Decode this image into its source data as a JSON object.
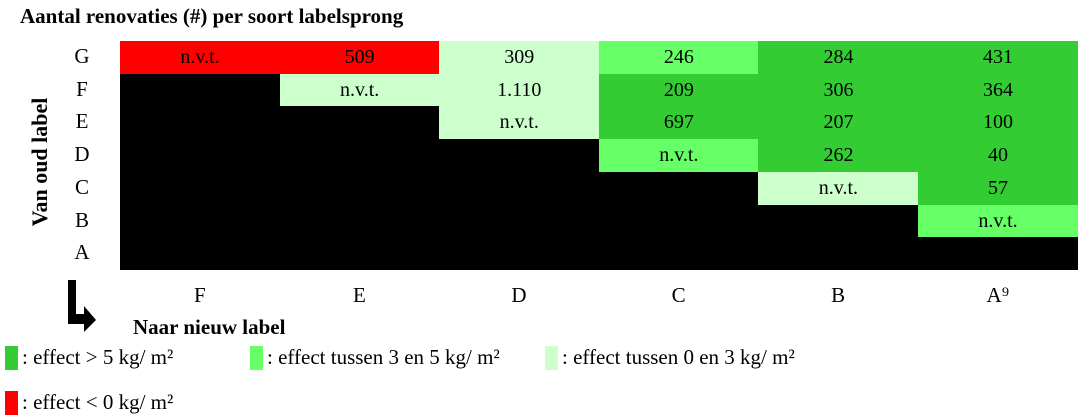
{
  "title": "Aantal renovaties (#) per soort labelsprong",
  "row_axis_label": "Van oud label",
  "column_axis_label": "Naar nieuw label",
  "columns": [
    "F",
    "E",
    "D",
    "C",
    "B",
    "A⁹"
  ],
  "rows": [
    {
      "label": "G",
      "cells": [
        {
          "text": "n.v.t.",
          "color": "#ff0000"
        },
        {
          "text": "509",
          "color": "#ff0000"
        },
        {
          "text": "309",
          "color": "#ccffcc"
        },
        {
          "text": "246",
          "color": "#66ff66"
        },
        {
          "text": "284",
          "color": "#33cc33"
        },
        {
          "text": "431",
          "color": "#33cc33"
        }
      ]
    },
    {
      "label": "F",
      "cells": [
        {
          "text": null,
          "color": "#000000"
        },
        {
          "text": "n.v.t.",
          "color": "#ccffcc"
        },
        {
          "text": "1.110",
          "color": "#ccffcc"
        },
        {
          "text": "209",
          "color": "#33cc33"
        },
        {
          "text": "306",
          "color": "#33cc33"
        },
        {
          "text": "364",
          "color": "#33cc33"
        }
      ]
    },
    {
      "label": "E",
      "cells": [
        {
          "text": null,
          "color": "#000000"
        },
        {
          "text": null,
          "color": "#000000"
        },
        {
          "text": "n.v.t.",
          "color": "#ccffcc"
        },
        {
          "text": "697",
          "color": "#33cc33"
        },
        {
          "text": "207",
          "color": "#33cc33"
        },
        {
          "text": "100",
          "color": "#33cc33"
        }
      ]
    },
    {
      "label": "D",
      "cells": [
        {
          "text": null,
          "color": "#000000"
        },
        {
          "text": null,
          "color": "#000000"
        },
        {
          "text": null,
          "color": "#000000"
        },
        {
          "text": "n.v.t.",
          "color": "#66ff66"
        },
        {
          "text": "262",
          "color": "#33cc33"
        },
        {
          "text": "40",
          "color": "#33cc33"
        }
      ]
    },
    {
      "label": "C",
      "cells": [
        {
          "text": null,
          "color": "#000000"
        },
        {
          "text": null,
          "color": "#000000"
        },
        {
          "text": null,
          "color": "#000000"
        },
        {
          "text": null,
          "color": "#000000"
        },
        {
          "text": "n.v.t.",
          "color": "#ccffcc"
        },
        {
          "text": "57",
          "color": "#33cc33"
        }
      ]
    },
    {
      "label": "B",
      "cells": [
        {
          "text": null,
          "color": "#000000"
        },
        {
          "text": null,
          "color": "#000000"
        },
        {
          "text": null,
          "color": "#000000"
        },
        {
          "text": null,
          "color": "#000000"
        },
        {
          "text": null,
          "color": "#000000"
        },
        {
          "text": "n.v.t.",
          "color": "#66ff66"
        }
      ]
    },
    {
      "label": "A",
      "cells": [
        {
          "text": null,
          "color": "#000000"
        },
        {
          "text": null,
          "color": "#000000"
        },
        {
          "text": null,
          "color": "#000000"
        },
        {
          "text": null,
          "color": "#000000"
        },
        {
          "text": null,
          "color": "#000000"
        },
        {
          "text": null,
          "color": "#000000"
        }
      ]
    }
  ],
  "legend": [
    {
      "color": "#33cc33",
      "text": ": effect > 5 kg/ m²"
    },
    {
      "color": "#66ff66",
      "text": ": effect tussen 3 en 5 kg/ m²"
    },
    {
      "color": "#ccffcc",
      "text": ": effect tussen 0 en 3 kg/ m²"
    },
    {
      "color": "#ff0000",
      "text": ": effect < 0 kg/ m²"
    }
  ]
}
